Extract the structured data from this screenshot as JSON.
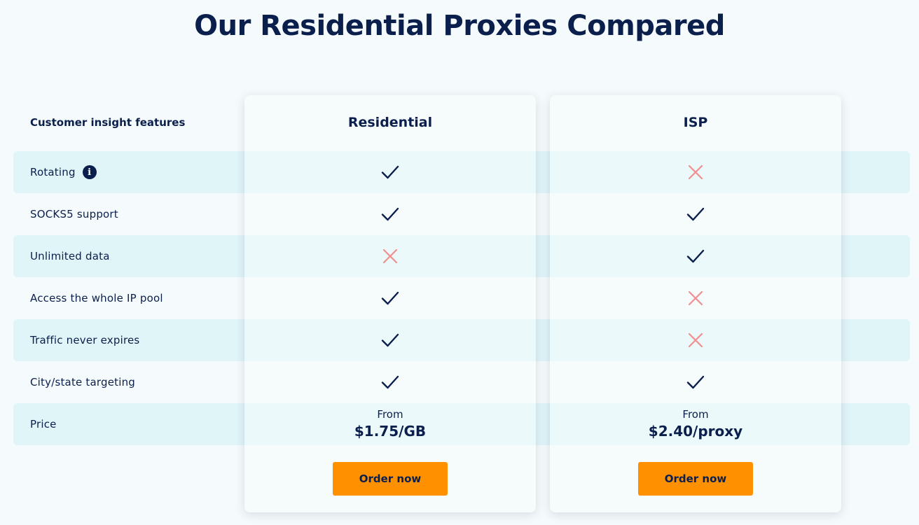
{
  "title": "Our Residential Proxies Compared",
  "table": {
    "features_header": "Customer insight features",
    "columns": [
      {
        "name": "Residential",
        "price_prefix": "From",
        "price": "$1.75/GB",
        "order_label": "Order now"
      },
      {
        "name": "ISP",
        "price_prefix": "From",
        "price": "$2.40/proxy",
        "order_label": "Order now"
      }
    ],
    "rows": [
      {
        "label": "Rotating",
        "info_icon": "i",
        "residential": "check",
        "isp": "cross"
      },
      {
        "label": "SOCKS5 support",
        "residential": "check",
        "isp": "check"
      },
      {
        "label": "Unlimited data",
        "residential": "cross",
        "isp": "check"
      },
      {
        "label": "Access the whole IP pool",
        "residential": "check",
        "isp": "cross"
      },
      {
        "label": "Traffic never expires",
        "residential": "check",
        "isp": "cross"
      },
      {
        "label": "City/state targeting",
        "residential": "check",
        "isp": "check"
      },
      {
        "label": "Price"
      }
    ]
  },
  "colors": {
    "navy": "#0b1f4d",
    "accent_orange": "#ff9000",
    "cross_red": "#f08f8f",
    "row_highlight": "#dff5f8",
    "background": "#f5fbfc"
  }
}
